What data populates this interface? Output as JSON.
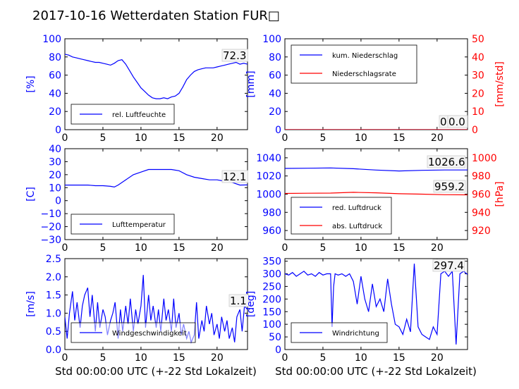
{
  "title": "2017-10-16 Wetterdaten Station FUR□",
  "xlabel": "Std 00:00:00 UTC (+-22 Std Lokalzeit)",
  "colors": {
    "blue": "#0000ff",
    "red": "#ff0000",
    "black": "#000000"
  },
  "chart_data": [
    {
      "type": "line",
      "ylabel": "[%]",
      "xlim": [
        0,
        24
      ],
      "ylim": [
        0,
        100
      ],
      "xticks": [
        "0",
        "5",
        "10",
        "15",
        "20"
      ],
      "yticks": [
        "0",
        "20",
        "40",
        "60",
        "80",
        "100"
      ],
      "legend": "bottom-left",
      "annotations": [
        "72.3"
      ],
      "series": [
        {
          "name": "rel. Luftfeuchte",
          "color": "#0000ff",
          "x": [
            0,
            0.5,
            1,
            1.5,
            2,
            2.5,
            3,
            3.5,
            4,
            4.5,
            5,
            5.5,
            6,
            6.5,
            7,
            7.5,
            8,
            8.5,
            9,
            9.5,
            10,
            10.5,
            11,
            11.5,
            12,
            12.5,
            13,
            13.5,
            14,
            14.5,
            15,
            15.5,
            16,
            16.5,
            17,
            17.5,
            18,
            18.5,
            19,
            19.5,
            20,
            20.5,
            21,
            21.5,
            22,
            22.5,
            23,
            23.5,
            24
          ],
          "y": [
            83,
            82,
            80,
            79,
            78,
            77,
            76,
            75,
            74,
            74,
            73,
            72,
            71,
            73,
            76,
            77,
            72,
            65,
            58,
            52,
            46,
            42,
            38,
            35,
            34,
            34,
            35,
            34,
            36,
            37,
            40,
            47,
            55,
            60,
            64,
            66,
            67,
            68,
            68,
            68,
            69,
            70,
            71,
            72,
            73,
            74,
            72,
            73,
            72
          ]
        }
      ]
    },
    {
      "type": "line",
      "ylabel": "[mm]",
      "ylabel2": "[mm/std]",
      "xlim": [
        0,
        24
      ],
      "ylim": [
        0,
        100
      ],
      "ylim2": [
        0,
        50
      ],
      "xticks": [
        "0",
        "5",
        "10",
        "15",
        "20"
      ],
      "yticks": [
        "0",
        "20",
        "40",
        "60",
        "80",
        "100"
      ],
      "yticks2": [
        "0",
        "10",
        "20",
        "30",
        "40",
        "50"
      ],
      "legend": "top-left",
      "annotations": [
        "0.0",
        "0.0"
      ],
      "series": [
        {
          "name": "kum. Niederschlag",
          "color": "#0000ff",
          "x": [
            0,
            24
          ],
          "y": [
            0,
            0
          ]
        },
        {
          "name": "Niederschlagsrate",
          "color": "#ff0000",
          "x": [
            0,
            24
          ],
          "y": [
            0,
            0
          ]
        }
      ]
    },
    {
      "type": "line",
      "ylabel": "[C]",
      "xlim": [
        0,
        24
      ],
      "ylim": [
        -30,
        40
      ],
      "xticks": [
        "0",
        "5",
        "10",
        "15",
        "20"
      ],
      "yticks": [
        "−30",
        "−20",
        "−10",
        "0",
        "10",
        "20",
        "30",
        "40"
      ],
      "legend": "bottom-left",
      "annotations": [
        "12.1"
      ],
      "series": [
        {
          "name": "Lufttemperatur",
          "color": "#0000ff",
          "x": [
            0,
            1,
            2,
            3,
            4,
            5,
            6,
            6.5,
            7,
            8,
            9,
            10,
            11,
            12,
            13,
            14,
            15,
            16,
            17,
            18,
            19,
            20,
            21,
            22,
            23,
            24
          ],
          "y": [
            12,
            12,
            12,
            12,
            11.5,
            11.5,
            11,
            10.5,
            12,
            16,
            20,
            22,
            24,
            24,
            24,
            24,
            23,
            20,
            18,
            17,
            16,
            16,
            15,
            14,
            12,
            12.1
          ]
        }
      ]
    },
    {
      "type": "line",
      "ylabel2": "[hPa]",
      "xlim": [
        0,
        24
      ],
      "ylim": [
        950,
        1050
      ],
      "ylim2": [
        910,
        1010
      ],
      "xticks": [
        "0",
        "5",
        "10",
        "15",
        "20"
      ],
      "yticks": [
        "960",
        "980",
        "1000",
        "1020",
        "1040"
      ],
      "yticks2": [
        "920",
        "940",
        "960",
        "980",
        "1000"
      ],
      "legend": "bottom-left",
      "annotations": [
        "1026.6",
        "959.2"
      ],
      "series": [
        {
          "name": "red. Luftdruck",
          "color": "#0000ff",
          "x": [
            0,
            3,
            6,
            9,
            12,
            15,
            18,
            21,
            24
          ],
          "y": [
            1028.3,
            1028.5,
            1028.8,
            1028,
            1026.5,
            1025.5,
            1026.2,
            1026.6,
            1026.6
          ]
        },
        {
          "name": "abs. Luftdruck",
          "color": "#ff0000",
          "x": [
            0,
            3,
            6,
            9,
            12,
            15,
            18,
            21,
            24
          ],
          "y": [
            960.8,
            961,
            961.2,
            962,
            961.5,
            960.5,
            960,
            959.4,
            959.2
          ]
        }
      ]
    },
    {
      "type": "line",
      "ylabel": "[m/s]",
      "xlim": [
        0,
        24
      ],
      "ylim": [
        0,
        2.5
      ],
      "xticks": [
        "0",
        "5",
        "10",
        "15",
        "20"
      ],
      "yticks": [
        "0.0",
        "0.5",
        "1.0",
        "1.5",
        "2.0",
        "2.5"
      ],
      "legend": "bottom-left",
      "annotations": [
        "1.1"
      ],
      "series": [
        {
          "name": "Windgeschwindigkeit",
          "color": "#0000ff",
          "x": [
            0,
            0.3,
            0.6,
            1,
            1.3,
            1.6,
            2,
            2.3,
            2.6,
            3,
            3.3,
            3.6,
            4,
            4.3,
            4.6,
            5,
            5.3,
            5.6,
            6,
            6.3,
            6.6,
            7,
            7.3,
            7.6,
            8,
            8.3,
            8.6,
            9,
            9.3,
            9.6,
            10,
            10.3,
            10.6,
            11,
            11.3,
            11.6,
            12,
            12.3,
            12.6,
            13,
            13.3,
            13.6,
            14,
            14.3,
            14.6,
            15,
            15.3,
            15.6,
            16,
            16.3,
            16.6,
            17,
            17.3,
            17.6,
            18,
            18.3,
            18.6,
            19,
            19.3,
            19.6,
            20,
            20.3,
            20.6,
            21,
            21.3,
            21.6,
            22,
            22.3,
            22.6,
            23,
            23.3,
            23.6,
            24
          ],
          "y": [
            0.9,
            0.3,
            1.0,
            1.6,
            0.8,
            1.3,
            0.6,
            1.2,
            1.5,
            1.7,
            0.9,
            1.5,
            0.5,
            1.3,
            0.6,
            1.1,
            0.9,
            0.4,
            0.8,
            1.0,
            1.3,
            0.3,
            1.1,
            0.5,
            1.2,
            0.7,
            1.4,
            0.5,
            1.1,
            0.7,
            1.2,
            2.05,
            0.6,
            1.5,
            0.8,
            1.2,
            0.6,
            1.1,
            0.5,
            1.4,
            0.8,
            1.1,
            0.5,
            1.4,
            0.6,
            1.0,
            0.4,
            0.7,
            0.3,
            0.5,
            0.2,
            0.4,
            1.3,
            0.3,
            0.8,
            0.5,
            1.2,
            0.7,
            1.0,
            0.4,
            0.7,
            0.3,
            0.9,
            0.5,
            0.8,
            0.3,
            0.6,
            0.2,
            0.9,
            1.1,
            0.5,
            1.2,
            1.1
          ]
        }
      ]
    },
    {
      "type": "line",
      "ylabel": "[deg]",
      "xlim": [
        0,
        24
      ],
      "ylim": [
        0,
        360
      ],
      "xticks": [
        "0",
        "5",
        "10",
        "15",
        "20"
      ],
      "yticks": [
        "0",
        "50",
        "100",
        "150",
        "200",
        "250",
        "300",
        "350"
      ],
      "legend": "bottom-left",
      "annotations": [
        "297.4"
      ],
      "series": [
        {
          "name": "Windrichtung",
          "color": "#0000ff",
          "x": [
            0,
            0.5,
            1,
            1.5,
            2,
            2.5,
            3,
            3.5,
            4,
            4.5,
            5,
            5.5,
            6,
            6.2,
            6.4,
            6.6,
            7,
            7.5,
            8,
            8.5,
            9,
            9.5,
            10,
            10.5,
            11,
            11.5,
            12,
            12.5,
            13,
            13.5,
            14,
            14.5,
            15,
            15.5,
            16,
            16.5,
            17,
            17.5,
            18,
            18.5,
            19,
            19.5,
            20,
            20.5,
            21,
            21.5,
            22,
            22.5,
            23,
            23.5,
            24
          ],
          "y": [
            300,
            295,
            305,
            290,
            300,
            310,
            295,
            300,
            290,
            305,
            295,
            300,
            300,
            90,
            250,
            300,
            295,
            300,
            290,
            300,
            270,
            180,
            290,
            200,
            150,
            260,
            170,
            200,
            150,
            280,
            180,
            100,
            90,
            60,
            120,
            70,
            340,
            90,
            60,
            50,
            40,
            90,
            60,
            300,
            310,
            290,
            310,
            20,
            300,
            310,
            297
          ]
        }
      ]
    }
  ]
}
